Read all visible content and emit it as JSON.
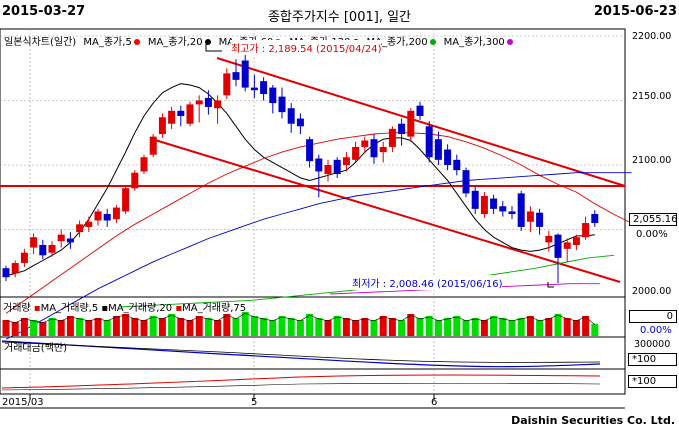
{
  "header": {
    "start_date": "2015-03-27",
    "title": "종합주가지수 [001], 일간",
    "end_date": "2015-06-23"
  },
  "chart_legend": {
    "chart_label": "일본식차트(일간)",
    "ma": [
      {
        "label": "MA_종가,5",
        "color": "#ff0000"
      },
      {
        "label": "MA_종가,20",
        "color": "#000000"
      },
      {
        "label": "MA_종가,60",
        "color": "#ff0000"
      },
      {
        "label": "MA_종가,120",
        "color": "#0000cc"
      },
      {
        "label": "MA_종가,200",
        "color": "#00aa00"
      },
      {
        "label": "MA_종가,300",
        "color": "#cc00cc"
      }
    ]
  },
  "price_axis": {
    "ticks": [
      "2200.00",
      "2150.00",
      "2100.00",
      "2050.00",
      "2000.00"
    ],
    "current_value": "2,055.16",
    "change_pct": "0.00%"
  },
  "annotations": {
    "high": "최고가 : 2,189.54 (2015/04/24)",
    "low": "최저가 : 2,008.46 (2015/06/16)"
  },
  "volume_panel": {
    "legend": [
      "거래량",
      "MA_거래량,5",
      "MA_거래량,20",
      "MA_거래량,75"
    ],
    "value": "0",
    "pct": "0.00%"
  },
  "amount_panel": {
    "legend": "거래대금(백만)",
    "tick": "300000",
    "unit": "*100"
  },
  "bottom_panel": {
    "unit": "*100"
  },
  "x_axis": {
    "labels": [
      "2015/03",
      "5",
      "6"
    ]
  },
  "footer": {
    "brand": "Daishin Securities Co. Ltd."
  },
  "chart_data": {
    "type": "candlestick",
    "ylim": [
      2000,
      2200
    ],
    "candles": [
      {
        "o": 2020,
        "c": 2013,
        "h": 2022,
        "l": 2010
      },
      {
        "o": 2016,
        "c": 2024,
        "h": 2026,
        "l": 2013
      },
      {
        "o": 2024,
        "c": 2032,
        "h": 2035,
        "l": 2021
      },
      {
        "o": 2036,
        "c": 2044,
        "h": 2047,
        "l": 2031
      },
      {
        "o": 2038,
        "c": 2030,
        "h": 2042,
        "l": 2027
      },
      {
        "o": 2032,
        "c": 2038,
        "h": 2041,
        "l": 2029
      },
      {
        "o": 2041,
        "c": 2046,
        "h": 2050,
        "l": 2036
      },
      {
        "o": 2043,
        "c": 2040,
        "h": 2048,
        "l": 2035
      },
      {
        "o": 2048,
        "c": 2054,
        "h": 2057,
        "l": 2044
      },
      {
        "o": 2052,
        "c": 2056,
        "h": 2060,
        "l": 2048
      },
      {
        "o": 2057,
        "c": 2064,
        "h": 2066,
        "l": 2053
      },
      {
        "o": 2062,
        "c": 2057,
        "h": 2066,
        "l": 2052
      },
      {
        "o": 2058,
        "c": 2067,
        "h": 2069,
        "l": 2055
      },
      {
        "o": 2064,
        "c": 2082,
        "h": 2084,
        "l": 2062
      },
      {
        "o": 2082,
        "c": 2094,
        "h": 2096,
        "l": 2080
      },
      {
        "o": 2095,
        "c": 2106,
        "h": 2108,
        "l": 2093
      },
      {
        "o": 2108,
        "c": 2122,
        "h": 2124,
        "l": 2106
      },
      {
        "o": 2124,
        "c": 2137,
        "h": 2140,
        "l": 2121
      },
      {
        "o": 2132,
        "c": 2142,
        "h": 2145,
        "l": 2128
      },
      {
        "o": 2142,
        "c": 2138,
        "h": 2146,
        "l": 2130
      },
      {
        "o": 2132,
        "c": 2147,
        "h": 2149,
        "l": 2130
      },
      {
        "o": 2147,
        "c": 2150,
        "h": 2154,
        "l": 2133
      },
      {
        "o": 2152,
        "c": 2145,
        "h": 2158,
        "l": 2139
      },
      {
        "o": 2144,
        "c": 2150,
        "h": 2154,
        "l": 2132
      },
      {
        "o": 2154,
        "c": 2171,
        "h": 2175,
        "l": 2151
      },
      {
        "o": 2172,
        "c": 2166,
        "h": 2182,
        "l": 2161
      },
      {
        "o": 2181,
        "c": 2160,
        "h": 2189.5,
        "l": 2157
      },
      {
        "o": 2160,
        "c": 2158,
        "h": 2170,
        "l": 2152
      },
      {
        "o": 2165,
        "c": 2155,
        "h": 2168,
        "l": 2150
      },
      {
        "o": 2160,
        "c": 2148,
        "h": 2162,
        "l": 2140
      },
      {
        "o": 2153,
        "c": 2141,
        "h": 2160,
        "l": 2136
      },
      {
        "o": 2144,
        "c": 2132,
        "h": 2148,
        "l": 2125
      },
      {
        "o": 2136,
        "c": 2130,
        "h": 2140,
        "l": 2124
      },
      {
        "o": 2120,
        "c": 2103,
        "h": 2122,
        "l": 2098
      },
      {
        "o": 2105,
        "c": 2095,
        "h": 2108,
        "l": 2075
      },
      {
        "o": 2093,
        "c": 2100,
        "h": 2104,
        "l": 2087
      },
      {
        "o": 2104,
        "c": 2093,
        "h": 2106,
        "l": 2090
      },
      {
        "o": 2100,
        "c": 2106,
        "h": 2110,
        "l": 2095
      },
      {
        "o": 2104,
        "c": 2114,
        "h": 2118,
        "l": 2102
      },
      {
        "o": 2114,
        "c": 2119,
        "h": 2122,
        "l": 2109
      },
      {
        "o": 2120,
        "c": 2106,
        "h": 2124,
        "l": 2101
      },
      {
        "o": 2110,
        "c": 2114,
        "h": 2118,
        "l": 2102
      },
      {
        "o": 2114,
        "c": 2128,
        "h": 2130,
        "l": 2110
      },
      {
        "o": 2132,
        "c": 2124,
        "h": 2136,
        "l": 2115
      },
      {
        "o": 2122,
        "c": 2142,
        "h": 2144,
        "l": 2118
      },
      {
        "o": 2146,
        "c": 2138,
        "h": 2149,
        "l": 2135
      },
      {
        "o": 2130,
        "c": 2106,
        "h": 2134,
        "l": 2102
      },
      {
        "o": 2120,
        "c": 2104,
        "h": 2126,
        "l": 2100
      },
      {
        "o": 2112,
        "c": 2100,
        "h": 2116,
        "l": 2096
      },
      {
        "o": 2104,
        "c": 2096,
        "h": 2108,
        "l": 2092
      },
      {
        "o": 2096,
        "c": 2078,
        "h": 2098,
        "l": 2075
      },
      {
        "o": 2080,
        "c": 2066,
        "h": 2084,
        "l": 2062
      },
      {
        "o": 2062,
        "c": 2076,
        "h": 2079,
        "l": 2059
      },
      {
        "o": 2074,
        "c": 2066,
        "h": 2077,
        "l": 2062
      },
      {
        "o": 2068,
        "c": 2064,
        "h": 2072,
        "l": 2060
      },
      {
        "o": 2064,
        "c": 2062,
        "h": 2068,
        "l": 2058
      },
      {
        "o": 2078,
        "c": 2052,
        "h": 2080,
        "l": 2049
      },
      {
        "o": 2056,
        "c": 2064,
        "h": 2068,
        "l": 2048
      },
      {
        "o": 2063,
        "c": 2052,
        "h": 2066,
        "l": 2046
      },
      {
        "o": 2040,
        "c": 2045,
        "h": 2049,
        "l": 2033
      },
      {
        "o": 2046,
        "c": 2028,
        "h": 2047,
        "l": 2008.46
      },
      {
        "o": 2035,
        "c": 2040,
        "h": 2043,
        "l": 2025
      },
      {
        "o": 2038,
        "c": 2044,
        "h": 2046,
        "l": 2034
      },
      {
        "o": 2044,
        "c": 2055,
        "h": 2060,
        "l": 2042
      },
      {
        "o": 2062,
        "c": 2055,
        "h": 2065,
        "l": 2052
      }
    ],
    "ma20": [
      2014,
      2016,
      2018,
      2022,
      2026,
      2030,
      2034,
      2040,
      2048,
      2058,
      2070,
      2082,
      2096,
      2110,
      2125,
      2138,
      2148,
      2156,
      2160,
      2163,
      2162,
      2160,
      2155,
      2148,
      2140,
      2130,
      2120,
      2112,
      2106,
      2102,
      2098,
      2094,
      2090,
      2088,
      2090,
      2092,
      2094,
      2096,
      2102,
      2110,
      2116,
      2120,
      2121,
      2121,
      2119,
      2112,
      2104,
      2096,
      2088,
      2078,
      2068,
      2058,
      2050,
      2044,
      2040,
      2036,
      2034,
      2033,
      2034,
      2036,
      2039,
      2042,
      2045,
      2045,
      2046
    ],
    "ma60": [
      1985,
      1995,
      2005,
      2015,
      2025,
      2035,
      2045,
      2054,
      2062,
      2070,
      2078,
      2086,
      2093,
      2099,
      2105,
      2110,
      2114,
      2117,
      2120,
      2122,
      2124,
      2125,
      2125,
      2124,
      2122,
      2118,
      2113,
      2107,
      2100,
      2092,
      2085,
      2079,
      2070,
      2062,
      2055
    ],
    "ma120": [
      1965,
      1972,
      1980,
      1988,
      1996,
      2004,
      2011,
      2018,
      2025,
      2031,
      2037,
      2043,
      2048,
      2053,
      2058,
      2062,
      2066,
      2070,
      2073,
      2076,
      2078,
      2080,
      2082,
      2084,
      2086,
      2088,
      2089,
      2090,
      2091,
      2092,
      2093,
      2094,
      2094,
      2094,
      2094
    ],
    "ma200": [
      1990,
      1991,
      1992,
      1993,
      1994,
      1995,
      1997,
      1999,
      2001,
      2003,
      2005,
      2007,
      2009,
      2011,
      2014,
      2017,
      2020,
      2024,
      2028,
      2030
    ],
    "ma300": [
      2000,
      2001,
      2002,
      2003,
      2004,
      2005,
      2006,
      2007,
      2008,
      2008
    ],
    "volume": [
      8,
      7,
      9,
      8,
      7,
      9,
      8,
      10,
      9,
      8,
      9,
      8,
      10,
      11,
      9,
      8,
      10,
      9,
      11,
      9,
      8,
      10,
      9,
      8,
      11,
      9,
      12,
      10,
      9,
      8,
      10,
      9,
      8,
      11,
      9,
      8,
      10,
      9,
      8,
      9,
      8,
      10,
      9,
      8,
      11,
      9,
      10,
      8,
      9,
      10,
      8,
      9,
      8,
      10,
      9,
      8,
      9,
      10,
      8,
      9,
      11,
      9,
      8,
      10,
      6
    ],
    "volume_up": [
      true,
      true,
      true,
      false,
      true,
      false,
      true,
      true,
      false,
      true,
      true,
      false,
      true,
      true,
      true,
      true,
      false,
      true,
      false,
      true,
      true,
      true,
      false,
      true,
      true,
      false,
      false,
      false,
      false,
      false,
      false,
      false,
      false,
      false,
      false,
      true,
      false,
      true,
      true,
      true,
      false,
      true,
      true,
      false,
      true,
      false,
      false,
      false,
      false,
      false,
      false,
      false,
      true,
      false,
      false,
      false,
      false,
      true,
      false,
      true,
      false,
      true,
      true,
      true,
      false
    ]
  }
}
